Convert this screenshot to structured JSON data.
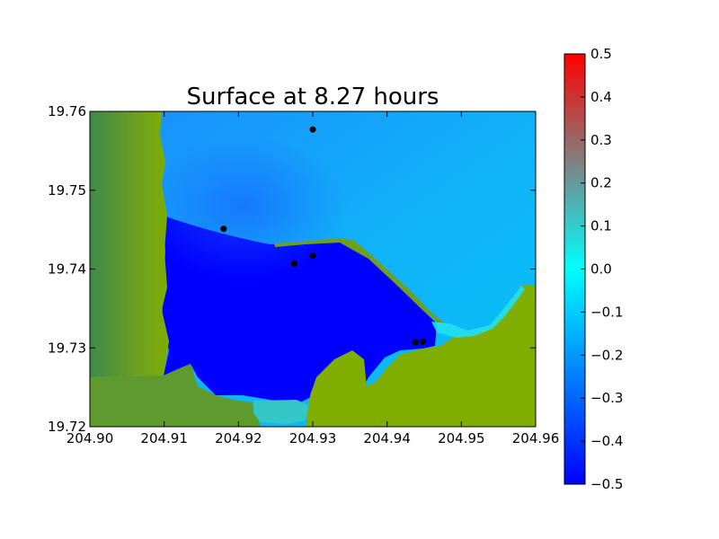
{
  "chart_data": {
    "type": "heatmap",
    "title": "Surface at 8.27 hours",
    "xlabel": "",
    "ylabel": "",
    "xlim": [
      204.9,
      204.96
    ],
    "ylim": [
      19.72,
      19.76
    ],
    "x_ticks": [
      "204.90",
      "204.91",
      "204.92",
      "204.93",
      "204.94",
      "204.95",
      "204.96"
    ],
    "y_ticks": [
      "19.72",
      "19.73",
      "19.74",
      "19.75",
      "19.76"
    ],
    "colorbar": {
      "range": [
        -0.5,
        0.5
      ],
      "ticks": [
        "−0.5",
        "−0.4",
        "−0.3",
        "−0.2",
        "−0.1",
        "0.0",
        "0.1",
        "0.2",
        "0.3",
        "0.4",
        "0.5"
      ],
      "colors": [
        "#0000ff",
        "#00ffff",
        "#ff0000"
      ]
    },
    "gauges": [
      {
        "x": 204.93,
        "y": 19.7577
      },
      {
        "x": 204.918,
        "y": 19.7451
      },
      {
        "x": 204.93,
        "y": 19.7417
      },
      {
        "x": 204.9275,
        "y": 19.7407
      },
      {
        "x": 204.9438,
        "y": 19.7307
      },
      {
        "x": 204.9448,
        "y": 19.7308
      }
    ],
    "colors": {
      "land": "#7fae00",
      "land_dark": "#4a8a3e",
      "deep_water": "#0000ff",
      "offshore_water": "#0ab6f8",
      "shore_cyan": "#22e0ee",
      "gauge": "#000000"
    }
  }
}
